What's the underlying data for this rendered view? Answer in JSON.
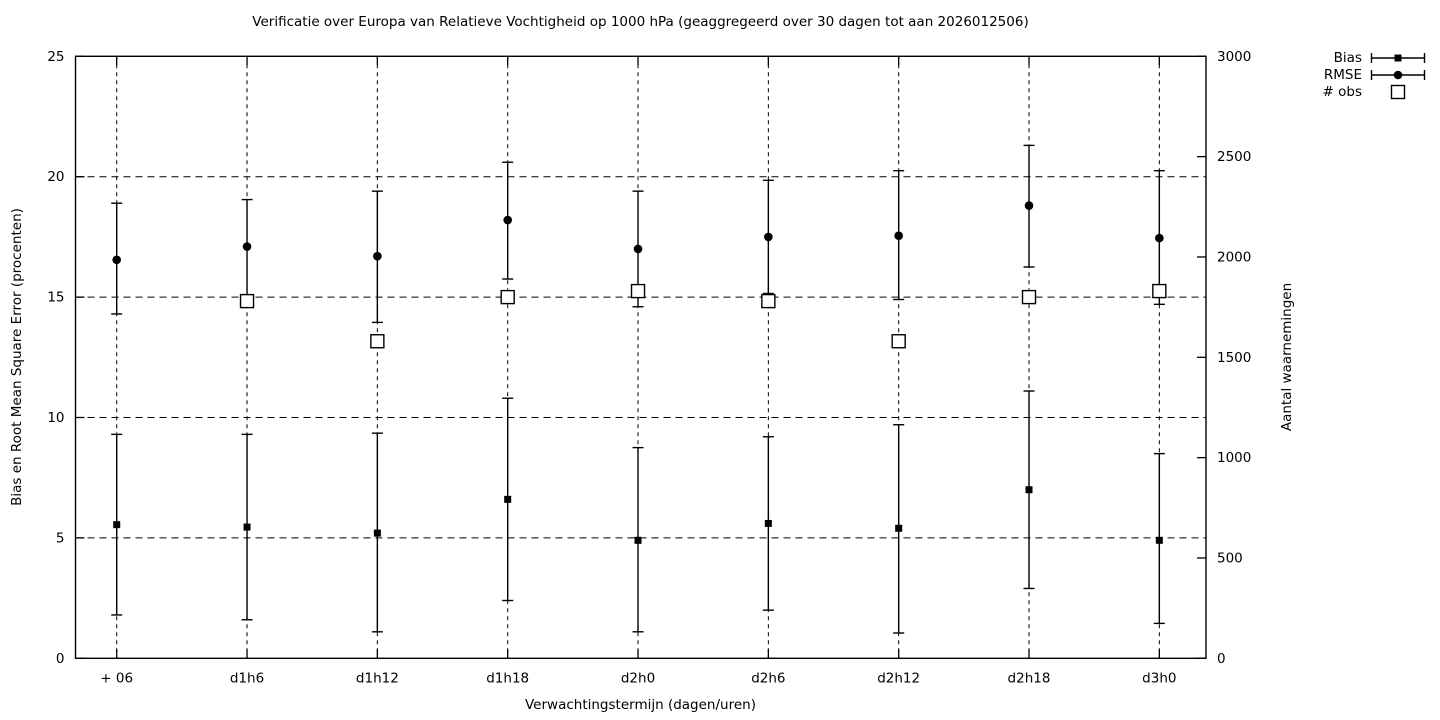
{
  "chart_data": {
    "type": "scatter",
    "title": "Verificatie over Europa van Relatieve Vochtigheid op 1000 hPa (geaggregeerd over 30 dagen tot aan 2026012506)",
    "xlabel": "Verwachtingstermijn (dagen/uren)",
    "ylabel": "Bias en Root Mean Square Error (procenten)",
    "y2label": "Aantal waarnemingen",
    "ylim": [
      0,
      25
    ],
    "y2lim": [
      0,
      3000
    ],
    "yticks": [
      0,
      5,
      10,
      15,
      20,
      25
    ],
    "y2ticks": [
      0,
      500,
      1000,
      1500,
      2000,
      2500,
      3000
    ],
    "grid": true,
    "legend_position": "top-right-outside",
    "categories": [
      "+ 06",
      "d1h6",
      "d1h12",
      "d1h18",
      "d2h0",
      "d2h6",
      "d2h12",
      "d2h18",
      "d3h0"
    ],
    "series": [
      {
        "name": "Bias",
        "axis": "y1",
        "marker": "filled-square",
        "values": [
          5.55,
          5.45,
          5.2,
          6.6,
          4.9,
          5.6,
          5.4,
          7.0,
          4.9
        ],
        "err_lo": [
          1.8,
          1.6,
          1.1,
          2.4,
          1.1,
          2.0,
          1.05,
          2.9,
          1.45
        ],
        "err_hi": [
          9.3,
          9.3,
          9.35,
          10.8,
          8.75,
          9.2,
          9.7,
          11.1,
          8.5
        ]
      },
      {
        "name": "RMSE",
        "axis": "y1",
        "marker": "filled-circle",
        "values": [
          16.55,
          17.1,
          16.7,
          18.2,
          17.0,
          17.5,
          17.55,
          18.8,
          17.45
        ],
        "err_lo": [
          14.3,
          15.1,
          13.95,
          15.75,
          14.6,
          15.15,
          14.9,
          16.25,
          14.7
        ],
        "err_hi": [
          18.9,
          19.05,
          19.4,
          20.6,
          19.4,
          19.85,
          20.25,
          21.3,
          20.25
        ]
      },
      {
        "name": "# obs",
        "axis": "y2",
        "marker": "open-square",
        "values": [
          null,
          1780,
          1580,
          1800,
          1830,
          1780,
          1580,
          1800,
          1830
        ]
      }
    ]
  }
}
